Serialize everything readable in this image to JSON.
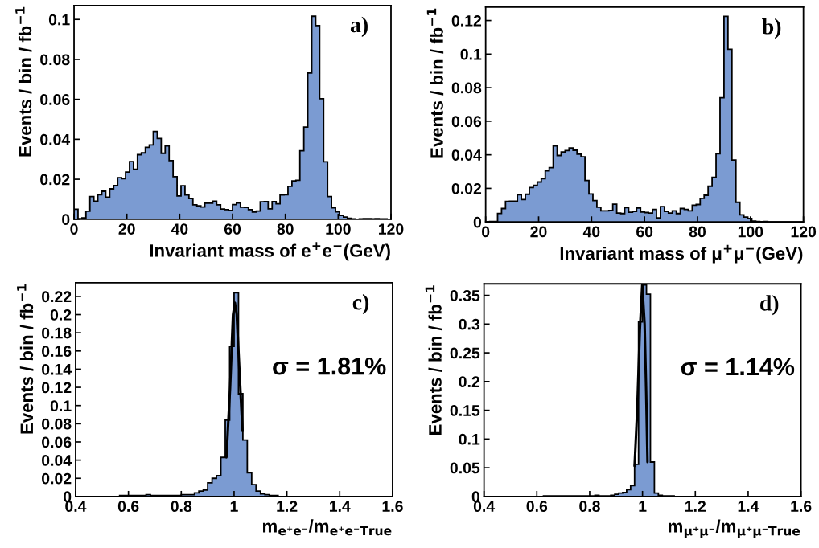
{
  "chart_data": [
    {
      "type": "histogram",
      "xlabel": "Invariant mass of e$^{+}$e$^{−}$(GeV)",
      "ylabel": "Events / bin / fb$^{−1}$",
      "annotations": [
        "a)"
      ],
      "xlim": [
        0,
        120
      ],
      "xticks": [
        0,
        20,
        40,
        60,
        80,
        100,
        120
      ],
      "ylim": [
        0,
        0.107
      ],
      "yticks": [
        0,
        0.02,
        0.04,
        0.06,
        0.08,
        0.1
      ],
      "color": "#7b9bd2",
      "bins": [
        0,
        1.5,
        3,
        4.5,
        6,
        7.5,
        9,
        10.5,
        12,
        13.5,
        15,
        16.5,
        18,
        19.5,
        21,
        22.5,
        24,
        25.5,
        27,
        28.5,
        30,
        31.5,
        33,
        34.5,
        36,
        37.5,
        39,
        40.5,
        42,
        43.5,
        45,
        46.5,
        48,
        49.5,
        51,
        52.5,
        54,
        55.5,
        57,
        58.5,
        60,
        61.5,
        63,
        64.5,
        66,
        67.5,
        69,
        70.5,
        72,
        73.5,
        75,
        76.5,
        78,
        79.5,
        81,
        82.5,
        84,
        85.5,
        87,
        88.5,
        90,
        91.5,
        93,
        94.5,
        96,
        97.5,
        99,
        100.5,
        102,
        103.5,
        105,
        106.5,
        108,
        109.5,
        111,
        112.5,
        114,
        115.5,
        117,
        118.5,
        120
      ],
      "values": [
        0.005,
        0.0003,
        0.0007,
        0.004,
        0.0113,
        0.009,
        0.0123,
        0.014,
        0.011,
        0.0152,
        0.0169,
        0.0208,
        0.0203,
        0.0236,
        0.0288,
        0.025,
        0.0323,
        0.0332,
        0.036,
        0.0372,
        0.0439,
        0.0404,
        0.033,
        0.0367,
        0.0293,
        0.0213,
        0.0116,
        0.0168,
        0.0121,
        0.0103,
        0.0072,
        0.0067,
        0.0061,
        0.008,
        0.008,
        0.009,
        0.0072,
        0.0051,
        0.0048,
        0.0044,
        0.0073,
        0.0081,
        0.006,
        0.0059,
        0.0048,
        0.0036,
        0.0041,
        0.0087,
        0.0088,
        0.0052,
        0.0088,
        0.0077,
        0.0121,
        0.0123,
        0.0165,
        0.0192,
        0.0195,
        0.0343,
        0.0461,
        0.0732,
        0.1016,
        0.0969,
        0.0603,
        0.0287,
        0.0113,
        0.0057,
        0.0037,
        0.0019,
        0.0011,
        0.0005,
        0.0002,
        0,
        0.0002,
        0.0003,
        0.0003,
        0.0002,
        0.0003,
        0.0002,
        0.0002,
        0
      ]
    },
    {
      "type": "histogram",
      "xlabel": "Invariant mass of μ$^{+}$μ$^{−}$(GeV)",
      "ylabel": "Events / bin / fb$^{−1}$",
      "annotations": [
        "b)"
      ],
      "xlim": [
        0,
        120
      ],
      "xticks": [
        0,
        20,
        40,
        60,
        80,
        100,
        120
      ],
      "ylim": [
        0,
        0.128
      ],
      "yticks": [
        0,
        0.02,
        0.04,
        0.06,
        0.08,
        0.1,
        0.12
      ],
      "color": "#7b9bd2",
      "bins": [
        0,
        1.5,
        3,
        4.5,
        6,
        7.5,
        9,
        10.5,
        12,
        13.5,
        15,
        16.5,
        18,
        19.5,
        21,
        22.5,
        24,
        25.5,
        27,
        28.5,
        30,
        31.5,
        33,
        34.5,
        36,
        37.5,
        39,
        40.5,
        42,
        43.5,
        45,
        46.5,
        48,
        49.5,
        51,
        52.5,
        54,
        55.5,
        57,
        58.5,
        60,
        61.5,
        63,
        64.5,
        66,
        67.5,
        69,
        70.5,
        72,
        73.5,
        75,
        76.5,
        78,
        79.5,
        81,
        82.5,
        84,
        85.5,
        87,
        88.5,
        90,
        91.5,
        93,
        94.5,
        96,
        97.5,
        99,
        100.5,
        102,
        103.5,
        105,
        106.5,
        108,
        109.5,
        111,
        112.5,
        114,
        115.5,
        117,
        118.5,
        120
      ],
      "values": [
        0,
        0.0003,
        0.0003,
        0.0051,
        0.008,
        0.0122,
        0.0124,
        0.0124,
        0.0162,
        0.0133,
        0.0165,
        0.0205,
        0.0218,
        0.0238,
        0.0258,
        0.0305,
        0.0324,
        0.0453,
        0.0396,
        0.0417,
        0.0425,
        0.0441,
        0.0427,
        0.0404,
        0.0388,
        0.0247,
        0.0167,
        0.0127,
        0.0088,
        0.0066,
        0.0066,
        0.0069,
        0.0106,
        0.0053,
        0.005,
        0.0085,
        0.0058,
        0.0063,
        0.0083,
        0.0059,
        0.0056,
        0.0053,
        0.0075,
        0.0024,
        0.0091,
        0.0063,
        0.0053,
        0.0066,
        0.005,
        0.008,
        0.0075,
        0.0066,
        0.01,
        0.0104,
        0.014,
        0.0159,
        0.0213,
        0.0266,
        0.0406,
        0.074,
        0.1225,
        0.1029,
        0.0369,
        0.0117,
        0.0042,
        0.0029,
        0.0021,
        0.0005,
        0.0003,
        0.0002,
        0.0003,
        0,
        0,
        0,
        0,
        0,
        0,
        0,
        0,
        0
      ]
    },
    {
      "type": "histogram",
      "xlabel": "m$_{e⁺e⁻}$/m$_{e⁺e⁻True}$",
      "ylabel": "Events / bin / fb$^{−1}$",
      "annotations": [
        "c)",
        "σ = 1.81%"
      ],
      "xlim": [
        0.4,
        1.6
      ],
      "xticks": [
        0.4,
        0.6,
        0.8,
        1,
        1.2,
        1.4,
        1.6
      ],
      "ylim": [
        0,
        0.235
      ],
      "yticks": [
        0,
        0.02,
        0.04,
        0.06,
        0.08,
        0.1,
        0.12,
        0.14,
        0.16,
        0.18,
        0.2,
        0.22
      ],
      "series": [
        {
          "color": "#7b9bd2",
          "bins": [
            0.4,
            0.4167,
            0.4333,
            0.45,
            0.4667,
            0.4833,
            0.5,
            0.5167,
            0.5333,
            0.55,
            0.5667,
            0.5833,
            0.6,
            0.6167,
            0.6333,
            0.65,
            0.6667,
            0.6833,
            0.7,
            0.7167,
            0.7333,
            0.75,
            0.7667,
            0.7833,
            0.8,
            0.8167,
            0.8333,
            0.85,
            0.8667,
            0.8833,
            0.9,
            0.9167,
            0.9333,
            0.95,
            0.9667,
            0.9833,
            1,
            1.0167,
            1.0333,
            1.05,
            1.0667,
            1.0833,
            1.1,
            1.1167,
            1.1333,
            1.15,
            1.1667,
            1.1833,
            1.2,
            1.2167,
            1.2333,
            1.25,
            1.2667,
            1.2833,
            1.3,
            1.3167,
            1.3333,
            1.35,
            1.3667,
            1.3833,
            1.4,
            1.4167,
            1.4333,
            1.45,
            1.4667,
            1.4833,
            1.5,
            1.5167,
            1.5333,
            1.55,
            1.5667,
            1.5833,
            1.6
          ],
          "values": [
            0,
            0,
            0,
            0,
            0,
            0,
            0,
            0,
            0,
            0,
            0.001,
            0.001,
            0.001,
            0.001,
            0.001,
            0.001,
            0.002,
            0.001,
            0.001,
            0.001,
            0.001,
            0.001,
            0.001,
            0.001,
            0.002,
            0.002,
            0.002,
            0.004,
            0.006,
            0.007,
            0.015,
            0.02,
            0.023,
            0.043,
            0.084,
            0.165,
            0.224,
            0.113,
            0.062,
            0.026,
            0.013,
            0.006,
            0.003,
            0.002,
            0.001,
            0.001,
            0,
            0,
            0,
            0,
            0,
            0,
            0,
            0,
            0,
            0,
            0,
            0,
            0,
            0,
            0,
            0,
            0,
            0,
            0,
            0,
            0,
            0,
            0,
            0,
            0,
            0
          ]
        },
        {
          "type": "line",
          "color": "#000000",
          "x": [
            0.971,
            0.985,
            0.996,
            1.003,
            1.01,
            1.02,
            1.032
          ],
          "values": [
            0.043,
            0.12,
            0.2,
            0.213,
            0.2,
            0.14,
            0.072
          ]
        }
      ]
    },
    {
      "type": "histogram",
      "xlabel": "m$_{μ⁺μ⁻}$/m$_{μ⁺μ⁻True}$",
      "ylabel": "Events / bin / fb$^{−1}$",
      "annotations": [
        "d)",
        "σ = 1.14%"
      ],
      "xlim": [
        0.4,
        1.6
      ],
      "xticks": [
        0.4,
        0.6,
        0.8,
        1,
        1.2,
        1.4,
        1.6
      ],
      "ylim": [
        0,
        0.37
      ],
      "yticks": [
        0,
        0.05,
        0.1,
        0.15,
        0.2,
        0.25,
        0.3,
        0.35
      ],
      "series": [
        {
          "color": "#7b9bd2",
          "bins": [
            0.4,
            0.415,
            0.43,
            0.445,
            0.46,
            0.475,
            0.49,
            0.505,
            0.52,
            0.535,
            0.55,
            0.565,
            0.58,
            0.595,
            0.61,
            0.625,
            0.64,
            0.655,
            0.67,
            0.685,
            0.7,
            0.715,
            0.73,
            0.745,
            0.76,
            0.775,
            0.79,
            0.805,
            0.82,
            0.835,
            0.85,
            0.865,
            0.88,
            0.895,
            0.91,
            0.925,
            0.94,
            0.955,
            0.97,
            0.985,
            1,
            1.015,
            1.03,
            1.045,
            1.06,
            1.075,
            1.09,
            1.105,
            1.12,
            1.135,
            1.15,
            1.165,
            1.18,
            1.195,
            1.21,
            1.225,
            1.24,
            1.255,
            1.27,
            1.285,
            1.3,
            1.315,
            1.33,
            1.345,
            1.36,
            1.375,
            1.39,
            1.405,
            1.42,
            1.435,
            1.45,
            1.465,
            1.48,
            1.495,
            1.51,
            1.525,
            1.54,
            1.555,
            1.57,
            1.585,
            1.6
          ],
          "values": [
            0,
            0,
            0,
            0,
            0,
            0,
            0,
            0,
            0,
            0,
            0,
            0,
            0,
            0,
            0,
            0.001,
            0.001,
            0.001,
            0.001,
            0.001,
            0.001,
            0.001,
            0.001,
            0.001,
            0.001,
            0.001,
            0.001,
            0.001,
            0.002,
            0.001,
            0.001,
            0.001,
            0.002,
            0.004,
            0.006,
            0.007,
            0.012,
            0.019,
            0.056,
            0.304,
            0.368,
            0.352,
            0.06,
            0.006,
            0.002,
            0.001,
            0.001,
            0.001,
            0,
            0,
            0,
            0,
            0,
            0,
            0,
            0,
            0,
            0,
            0,
            0,
            0,
            0,
            0,
            0,
            0,
            0,
            0,
            0,
            0,
            0,
            0,
            0,
            0,
            0,
            0,
            0,
            0,
            0,
            0,
            0
          ]
        },
        {
          "type": "line",
          "color": "#000000",
          "x": [
            0.97,
            0.98,
            0.99,
            0.999,
            1.008,
            1.014,
            1.019
          ],
          "values": [
            0.053,
            0.15,
            0.29,
            0.368,
            0.3,
            0.18,
            0.06
          ]
        }
      ]
    }
  ]
}
